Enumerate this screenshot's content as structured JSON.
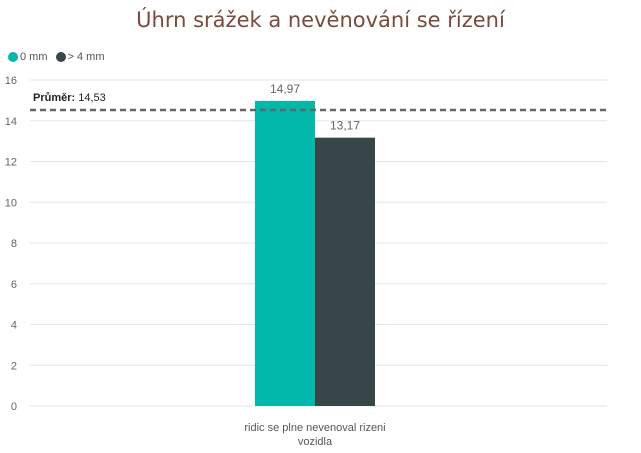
{
  "chart_data": {
    "type": "bar",
    "title": "Úhrn srážek a nevěnování se řízení",
    "categories": [
      "ridic se plne nevenoval rizeni vozidla"
    ],
    "category_lines": [
      "ridic se plne nevenoval rizeni",
      "vozidla"
    ],
    "series": [
      {
        "name": "0 mm",
        "values": [
          14.97
        ],
        "value_labels": [
          "14,97"
        ],
        "color": "#01b8aa"
      },
      {
        "name": "> 4 mm",
        "values": [
          13.17
        ],
        "value_labels": [
          "13,17"
        ],
        "color": "#374649"
      }
    ],
    "ylim": [
      0,
      16
    ],
    "yticks": [
      0,
      2,
      4,
      6,
      8,
      10,
      12,
      14,
      16
    ],
    "grid": true,
    "legend_position": "top-left",
    "reference_line": {
      "label": "Průměr",
      "value": 14.53,
      "value_label": "14,53"
    }
  }
}
